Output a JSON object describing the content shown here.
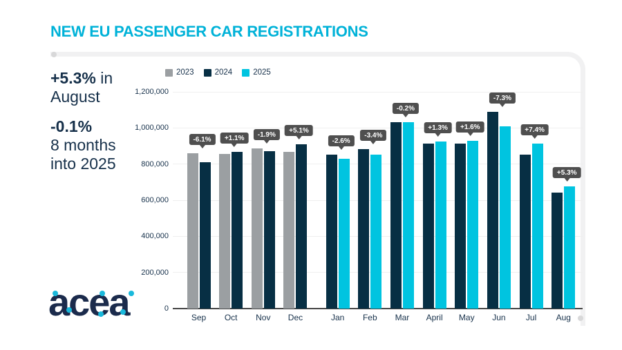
{
  "title": "NEW EU PASSENGER CAR REGISTRATIONS",
  "summary": {
    "august_pct": "+5.3%",
    "august_suffix": " in",
    "august_line2": "August",
    "ytd_pct": "-0.1%",
    "ytd_line2": "8 months",
    "ytd_line3": "into 2025"
  },
  "logo": {
    "text": "acea"
  },
  "colors": {
    "accent_cyan": "#00b2d8",
    "bar_gray_2023": "#9b9fa2",
    "bar_navy_2024": "#072f44",
    "bar_cyan_2025": "#00c4e0",
    "text_navy": "#16304a",
    "badge_bg": "#4f4f4f",
    "gridline": "#efefef",
    "axis_line": "#454545",
    "frame_gray": "#f1f1f2"
  },
  "chart_data": {
    "type": "bar",
    "title": "",
    "xlabel": "",
    "ylabel": "",
    "grid": true,
    "legend_position": "top-left",
    "ylim": [
      0,
      1200000
    ],
    "categories": [
      "Sep",
      "Oct",
      "Nov",
      "Dec",
      "Jan",
      "Feb",
      "Mar",
      "April",
      "May",
      "Jun",
      "Jul",
      "Aug"
    ],
    "series": [
      {
        "name": "2023",
        "color": "#9b9fa2",
        "values": [
          861000,
          855000,
          886000,
          867000,
          null,
          null,
          null,
          null,
          null,
          null,
          null,
          null
        ]
      },
      {
        "name": "2024",
        "color": "#072f44",
        "values": [
          809000,
          866000,
          870000,
          911000,
          852000,
          884000,
          1032000,
          914000,
          912000,
          1090000,
          852000,
          643000
        ]
      },
      {
        "name": "2025",
        "color": "#00c4e0",
        "values": [
          null,
          null,
          null,
          null,
          831000,
          854000,
          1030000,
          925000,
          927000,
          1010000,
          915000,
          678000
        ]
      }
    ],
    "pct_labels": [
      "-6.1%",
      "+1.1%",
      "-1.9%",
      "+5.1%",
      "-2.6%",
      "-3.4%",
      "-0.2%",
      "+1.3%",
      "+1.6%",
      "-7.3%",
      "+7.4%",
      "+5.3%"
    ],
    "y_axis": {
      "ticks": [
        {
          "value": 0,
          "label": "0"
        },
        {
          "value": 200000,
          "label": "200,000"
        },
        {
          "value": 400000,
          "label": "400,000"
        },
        {
          "value": 600000,
          "label": "600,000"
        },
        {
          "value": 800000,
          "label": "800,000"
        },
        {
          "value": 1000000,
          "label": "1,000,000"
        },
        {
          "value": 1200000,
          "label": "1,200,000"
        }
      ]
    },
    "legend": [
      {
        "label": "2023",
        "color": "#9b9fa2"
      },
      {
        "label": "2024",
        "color": "#072f44"
      },
      {
        "label": "2025",
        "color": "#00c4e0"
      }
    ]
  }
}
